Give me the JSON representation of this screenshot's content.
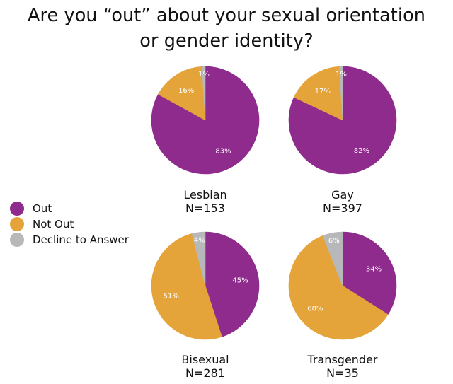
{
  "title_lines": [
    "Are you “out” about your sexual orientation",
    "or gender identity?"
  ],
  "legend": [
    {
      "label": "Out",
      "color": "#8e2b8d"
    },
    {
      "label": "Not Out",
      "color": "#e5a43a"
    },
    {
      "label": "Decline to Answer",
      "color": "#b7b8ba"
    }
  ],
  "chart_data": [
    {
      "type": "pie",
      "title": "Lesbian",
      "subtitle": "N=153",
      "labels": [
        "Out",
        "Not Out",
        "Decline to Answer"
      ],
      "values": [
        83,
        16,
        1
      ],
      "data_labels": [
        "83%",
        "16%",
        "1%"
      ]
    },
    {
      "type": "pie",
      "title": "Gay",
      "subtitle": "N=397",
      "labels": [
        "Out",
        "Not Out",
        "Decline to Answer"
      ],
      "values": [
        82,
        17,
        1
      ],
      "data_labels": [
        "82%",
        "17%",
        "1%"
      ]
    },
    {
      "type": "pie",
      "title": "Bisexual",
      "subtitle": "N=281",
      "labels": [
        "Out",
        "Not Out",
        "Decline to Answer"
      ],
      "values": [
        45,
        51,
        4
      ],
      "data_labels": [
        "45%",
        "51%",
        "4%"
      ]
    },
    {
      "type": "pie",
      "title": "Transgender",
      "subtitle": "N=35",
      "labels": [
        "Out",
        "Not Out",
        "Decline to Answer"
      ],
      "values": [
        34,
        60,
        6
      ],
      "data_labels": [
        "34%",
        "60%",
        "6%"
      ]
    }
  ]
}
